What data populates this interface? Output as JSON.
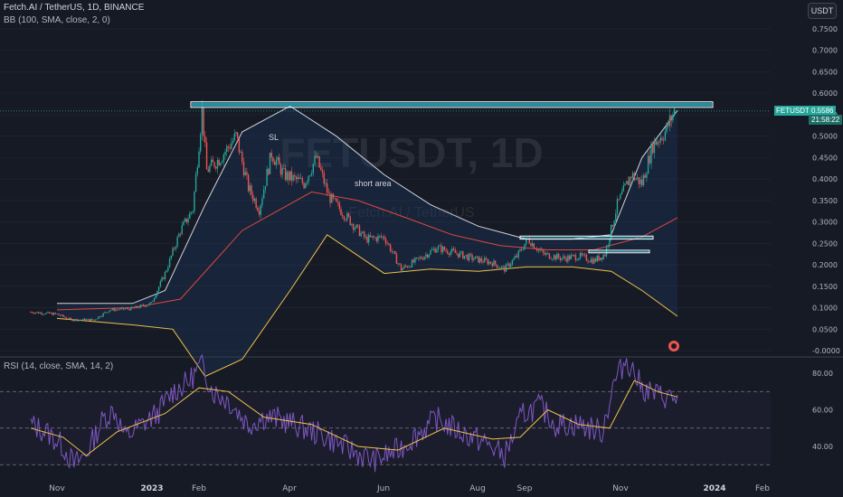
{
  "header": {
    "title": "Fetch.AI / TetherUS, 1D, BINANCE",
    "indicator_bb": "BB (100, SMA, close, 2, 0)",
    "indicator_rsi": "RSI (14, close, SMA, 14, 2)"
  },
  "currency_button": "USDT",
  "last_price": {
    "symbol": "FETUSDT",
    "price": "0.5586",
    "countdown": "21:58:22"
  },
  "watermark": {
    "symbol": "FETUSDT, 1D",
    "name": "Fetch.AI / TetherUS"
  },
  "colors": {
    "bg": "#161a25",
    "up": "#26a69a",
    "down": "#ef5350",
    "bb_upper": "#d1d4dc",
    "bb_basis": "#e0493c",
    "bb_lower": "#f0c24b",
    "rsi": "#7e57c2",
    "rsi_ma": "#f0c24b",
    "zone": "#26c6da"
  },
  "chart_data": {
    "type": "candlestick",
    "symbol": "FETUSDT",
    "timeframe": "1D",
    "y_axis": {
      "range": [
        -0.0,
        0.78
      ],
      "ticks": [
        "0.7500",
        "0.7000",
        "0.6500",
        "0.6000",
        "0.5500",
        "0.5000",
        "0.4500",
        "0.4000",
        "0.3500",
        "0.3000",
        "0.2500",
        "0.2000",
        "0.1500",
        "0.1000",
        "0.0500",
        "-0.0000"
      ]
    },
    "x_axis": {
      "ticks": [
        "Nov",
        "2023",
        "Feb",
        "Apr",
        "Jun",
        "Aug",
        "Sep",
        "Nov",
        "2024",
        "Feb"
      ],
      "bold_ticks": [
        "2023",
        "2024"
      ]
    },
    "close_path": [
      [
        "2022-10-15",
        0.09
      ],
      [
        "2022-11-01",
        0.085
      ],
      [
        "2022-11-10",
        0.072
      ],
      [
        "2022-11-25",
        0.072
      ],
      [
        "2022-12-05",
        0.095
      ],
      [
        "2022-12-20",
        0.098
      ],
      [
        "2023-01-01",
        0.11
      ],
      [
        "2023-01-10",
        0.18
      ],
      [
        "2023-01-20",
        0.28
      ],
      [
        "2023-01-28",
        0.33
      ],
      [
        "2023-02-03",
        0.56
      ],
      [
        "2023-02-06",
        0.42
      ],
      [
        "2023-02-15",
        0.45
      ],
      [
        "2023-02-25",
        0.5
      ],
      [
        "2023-03-05",
        0.38
      ],
      [
        "2023-03-12",
        0.33
      ],
      [
        "2023-03-20",
        0.46
      ],
      [
        "2023-03-28",
        0.41
      ],
      [
        "2023-04-10",
        0.39
      ],
      [
        "2023-04-18",
        0.45
      ],
      [
        "2023-04-26",
        0.36
      ],
      [
        "2023-05-08",
        0.31
      ],
      [
        "2023-05-20",
        0.26
      ],
      [
        "2023-06-01",
        0.265
      ],
      [
        "2023-06-12",
        0.19
      ],
      [
        "2023-06-22",
        0.21
      ],
      [
        "2023-07-05",
        0.24
      ],
      [
        "2023-07-15",
        0.23
      ],
      [
        "2023-07-28",
        0.215
      ],
      [
        "2023-08-10",
        0.205
      ],
      [
        "2023-08-18",
        0.19
      ],
      [
        "2023-08-26",
        0.22
      ],
      [
        "2023-09-02",
        0.26
      ],
      [
        "2023-09-12",
        0.225
      ],
      [
        "2023-09-25",
        0.215
      ],
      [
        "2023-10-05",
        0.22
      ],
      [
        "2023-10-15",
        0.21
      ],
      [
        "2023-10-22",
        0.225
      ],
      [
        "2023-10-30",
        0.34
      ],
      [
        "2023-11-08",
        0.41
      ],
      [
        "2023-11-15",
        0.39
      ],
      [
        "2023-11-22",
        0.48
      ],
      [
        "2023-11-30",
        0.51
      ],
      [
        "2023-12-06",
        0.559
      ]
    ],
    "bollinger_bands": {
      "settings": "BB (100, SMA, close, 2, 0)",
      "upper": [
        [
          "2022-11-01",
          0.11
        ],
        [
          "2022-12-20",
          0.11
        ],
        [
          "2023-01-10",
          0.14
        ],
        [
          "2023-02-05",
          0.34
        ],
        [
          "2023-03-01",
          0.51
        ],
        [
          "2023-04-01",
          0.57
        ],
        [
          "2023-05-01",
          0.5
        ],
        [
          "2023-06-01",
          0.41
        ],
        [
          "2023-07-01",
          0.34
        ],
        [
          "2023-08-01",
          0.29
        ],
        [
          "2023-09-01",
          0.26
        ],
        [
          "2023-10-01",
          0.26
        ],
        [
          "2023-10-26",
          0.27
        ],
        [
          "2023-11-15",
          0.45
        ],
        [
          "2023-12-08",
          0.56
        ]
      ],
      "basis": [
        [
          "2022-11-01",
          0.095
        ],
        [
          "2022-12-20",
          0.1
        ],
        [
          "2023-01-20",
          0.12
        ],
        [
          "2023-03-01",
          0.28
        ],
        [
          "2023-04-15",
          0.37
        ],
        [
          "2023-05-15",
          0.35
        ],
        [
          "2023-06-15",
          0.31
        ],
        [
          "2023-07-15",
          0.27
        ],
        [
          "2023-08-15",
          0.245
        ],
        [
          "2023-09-15",
          0.235
        ],
        [
          "2023-10-15",
          0.235
        ],
        [
          "2023-11-15",
          0.265
        ],
        [
          "2023-12-08",
          0.31
        ]
      ],
      "lower": [
        [
          "2022-11-01",
          0.075
        ],
        [
          "2022-12-20",
          0.06
        ],
        [
          "2023-01-15",
          0.05
        ],
        [
          "2023-02-05",
          -0.06
        ],
        [
          "2023-03-01",
          -0.02
        ],
        [
          "2023-04-01",
          0.14
        ],
        [
          "2023-04-25",
          0.27
        ],
        [
          "2023-06-01",
          0.18
        ],
        [
          "2023-07-01",
          0.19
        ],
        [
          "2023-08-01",
          0.185
        ],
        [
          "2023-09-01",
          0.195
        ],
        [
          "2023-10-01",
          0.195
        ],
        [
          "2023-10-26",
          0.185
        ],
        [
          "2023-11-15",
          0.14
        ],
        [
          "2023-12-08",
          0.08
        ]
      ]
    },
    "annotations": [
      {
        "label": "SL",
        "type": "text"
      },
      {
        "label": "short area",
        "type": "text"
      },
      {
        "label": "resistance zone",
        "type": "box",
        "y_range": [
          0.567,
          0.58
        ]
      },
      {
        "label": "level 1",
        "type": "box",
        "y_range": [
          0.26,
          0.267
        ]
      },
      {
        "label": "level 2",
        "type": "box",
        "y_range": [
          0.228,
          0.234
        ]
      }
    ],
    "rsi": {
      "settings": "RSI (14, close, SMA, 14, 2)",
      "levels": [
        70,
        50,
        30
      ],
      "ticks": [
        "80.00",
        "60.00",
        "40.00"
      ],
      "range": [
        25,
        92
      ],
      "values": [
        [
          "2022-10-15",
          52
        ],
        [
          "2022-10-25",
          48
        ],
        [
          "2022-11-05",
          40
        ],
        [
          "2022-11-12",
          30
        ],
        [
          "2022-11-20",
          36
        ],
        [
          "2022-12-01",
          55
        ],
        [
          "2022-12-08",
          60
        ],
        [
          "2022-12-15",
          45
        ],
        [
          "2023-01-05",
          58
        ],
        [
          "2023-01-15",
          70
        ],
        [
          "2023-01-25",
          75
        ],
        [
          "2023-02-03",
          85
        ],
        [
          "2023-02-10",
          70
        ],
        [
          "2023-02-20",
          65
        ],
        [
          "2023-03-05",
          52
        ],
        [
          "2023-03-15",
          56
        ],
        [
          "2023-03-25",
          55
        ],
        [
          "2023-04-10",
          50
        ],
        [
          "2023-04-25",
          45
        ],
        [
          "2023-05-10",
          38
        ],
        [
          "2023-05-25",
          32
        ],
        [
          "2023-06-10",
          38
        ],
        [
          "2023-06-20",
          45
        ],
        [
          "2023-07-05",
          55
        ],
        [
          "2023-07-20",
          48
        ],
        [
          "2023-08-05",
          42
        ],
        [
          "2023-08-18",
          35
        ],
        [
          "2023-08-30",
          58
        ],
        [
          "2023-09-10",
          62
        ],
        [
          "2023-09-20",
          52
        ],
        [
          "2023-10-05",
          52
        ],
        [
          "2023-10-20",
          48
        ],
        [
          "2023-10-28",
          75
        ],
        [
          "2023-11-05",
          88
        ],
        [
          "2023-11-15",
          72
        ],
        [
          "2023-11-25",
          68
        ],
        [
          "2023-12-08",
          66
        ]
      ],
      "ma": [
        [
          "2022-10-15",
          50
        ],
        [
          "2022-11-05",
          45
        ],
        [
          "2022-11-20",
          35
        ],
        [
          "2022-12-10",
          48
        ],
        [
          "2023-01-10",
          58
        ],
        [
          "2023-02-01",
          72
        ],
        [
          "2023-02-20",
          70
        ],
        [
          "2023-03-15",
          56
        ],
        [
          "2023-04-15",
          52
        ],
        [
          "2023-05-15",
          40
        ],
        [
          "2023-06-10",
          38
        ],
        [
          "2023-07-10",
          50
        ],
        [
          "2023-08-10",
          44
        ],
        [
          "2023-08-28",
          45
        ],
        [
          "2023-09-15",
          60
        ],
        [
          "2023-10-05",
          52
        ],
        [
          "2023-10-25",
          50
        ],
        [
          "2023-11-10",
          76
        ],
        [
          "2023-11-25",
          70
        ],
        [
          "2023-12-08",
          67
        ]
      ]
    }
  }
}
